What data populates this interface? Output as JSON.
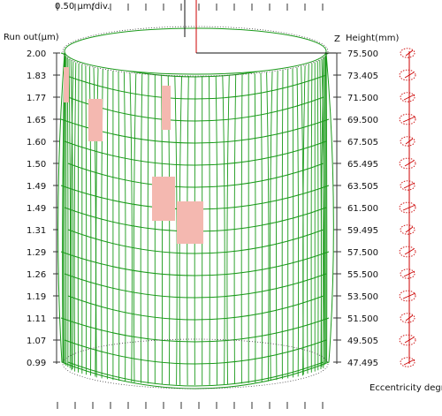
{
  "chart_data": {
    "type": "cylindricity-3d",
    "scale_label": "0.50 μm/div.",
    "left_axis_title": "Run out(μm)",
    "right_axis_title": "Height(mm)",
    "z_label": "Z",
    "eccentricity_label": "Eccentricity degree",
    "runout_values": [
      "2.00",
      "1.83",
      "1.77",
      "1.65",
      "1.60",
      "1.50",
      "1.49",
      "1.49",
      "1.31",
      "1.29",
      "1.26",
      "1.19",
      "1.11",
      "1.07",
      "0.99"
    ],
    "height_values": [
      "75.500",
      "73.405",
      "71.500",
      "69.500",
      "67.505",
      "65.495",
      "63.505",
      "61.500",
      "59.495",
      "57.500",
      "55.500",
      "53.500",
      "51.500",
      "49.505",
      "47.495"
    ],
    "wall_color": "#1a9a1a",
    "defect_color": "#f4b8b0",
    "axis_color": "#cc0000"
  }
}
